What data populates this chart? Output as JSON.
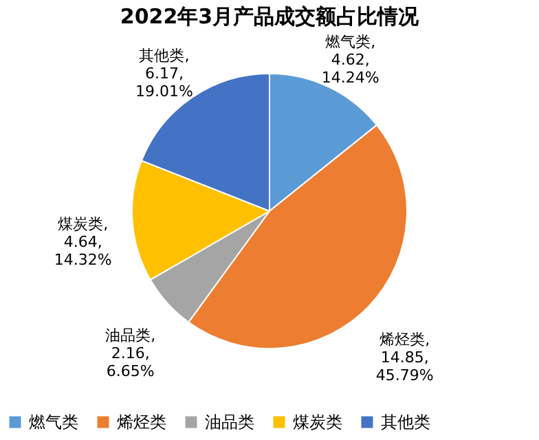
{
  "chart_data": {
    "type": "pie",
    "title": "2022年3月产品成交额占比情况",
    "categories": [
      "燃气类",
      "烯烃类",
      "油品类",
      "煤炭类",
      "其他类"
    ],
    "values": [
      4.62,
      14.85,
      2.16,
      4.64,
      6.17
    ],
    "colors": [
      "#5b9bd5",
      "#ed7d31",
      "#a5a5a5",
      "#ffc000",
      "#4472c4"
    ],
    "value_labels": [
      "燃气类,\n4.62,\n14.24%",
      "烯烃类,\n14.85,\n45.79%",
      "油品类,\n2.16,\n6.65%",
      "煤炭类,\n4.64,\n14.32%",
      "其他类,\n6.17,\n19.01%"
    ],
    "legend": "bottom"
  }
}
